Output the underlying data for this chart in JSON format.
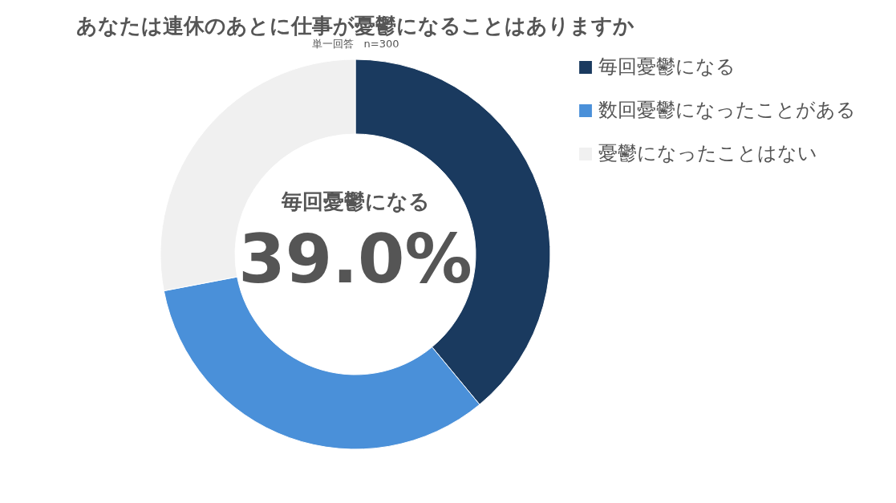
{
  "chart_data": {
    "type": "donut",
    "title": "あなたは連休のあとに仕事が憂鬱になることはありますか",
    "subtitle": "単一回答　n=300",
    "categories": [
      "毎回憂鬱になる",
      "数回憂鬱になったことがある",
      "憂鬱になったことはない"
    ],
    "values": [
      39.0,
      33.0,
      28.0
    ],
    "colors": [
      "#1a3a5f",
      "#4a90d9",
      "#f0f0f0"
    ],
    "legend": "right",
    "annotations": [
      "毎回憂鬱になる",
      "39.0%"
    ]
  }
}
